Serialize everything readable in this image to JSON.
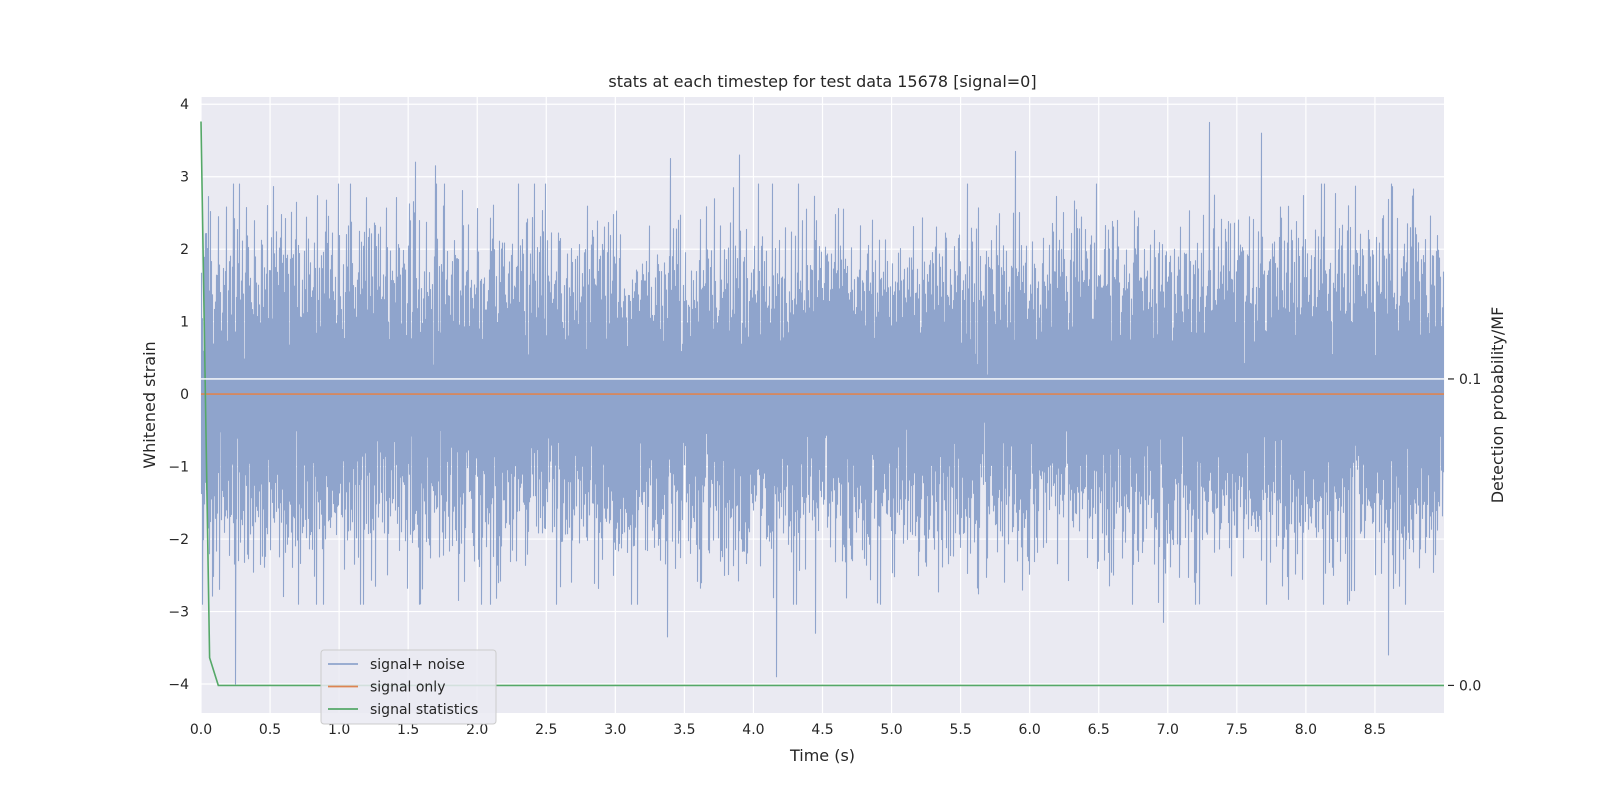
{
  "chart_data": {
    "type": "line",
    "title": "stats at each timestep for test data 15678 [signal=0]",
    "xlabel": "Time (s)",
    "ylabel": "Whitened strain",
    "y2label": "Detection probability/MF",
    "xlim": [
      0,
      9.0
    ],
    "ylim": [
      -4.4,
      4.1
    ],
    "y2lim": [
      -0.009,
      0.192
    ],
    "x_ticks": [
      "0.0",
      "0.5",
      "1.0",
      "1.5",
      "2.0",
      "2.5",
      "3.0",
      "3.5",
      "4.0",
      "4.5",
      "5.0",
      "5.5",
      "6.0",
      "6.5",
      "7.0",
      "7.5",
      "8.0",
      "8.5"
    ],
    "y_ticks": [
      "−4",
      "−3",
      "−2",
      "−1",
      "0",
      "1",
      "2",
      "3",
      "4"
    ],
    "y2_ticks": [
      "0.0",
      "0.1"
    ],
    "grid": true,
    "legend_position": "lower-left",
    "colors": {
      "background": "#eaeaf2",
      "grid": "#ffffff",
      "noise": "#8fa4cc",
      "signal_only": "#dd8452",
      "statistics": "#55a868"
    },
    "series": [
      {
        "name": "signal+ noise",
        "axis": "left",
        "kind": "noise",
        "sample_rate": 2048,
        "duration": 9.0,
        "std": 0.95,
        "seed": 15678,
        "notable_peaks": [
          {
            "x": 1.55,
            "y": 3.2
          },
          {
            "x": 1.7,
            "y": 3.15
          },
          {
            "x": 3.4,
            "y": 3.25
          },
          {
            "x": 3.9,
            "y": 3.3
          },
          {
            "x": 5.9,
            "y": 3.35
          },
          {
            "x": 7.3,
            "y": 3.75
          },
          {
            "x": 7.68,
            "y": 3.6
          },
          {
            "x": 0.25,
            "y": -4.0
          },
          {
            "x": 4.17,
            "y": -3.9
          },
          {
            "x": 4.45,
            "y": -3.3
          },
          {
            "x": 6.97,
            "y": -3.15
          },
          {
            "x": 8.6,
            "y": -3.6
          },
          {
            "x": 3.38,
            "y": -3.35
          }
        ]
      },
      {
        "name": "signal only",
        "axis": "left",
        "x": [
          0,
          9.0
        ],
        "y": [
          0,
          0
        ]
      },
      {
        "name": "signal statistics",
        "axis": "right",
        "x": [
          0,
          0.0625,
          0.125,
          0.25,
          9.0
        ],
        "y": [
          0.184,
          0.009,
          0.0,
          0.0,
          0.0
        ]
      }
    ],
    "annotations": [
      {
        "type": "hline",
        "axis": "right",
        "y": 0.1,
        "color": "#ffffff"
      }
    ]
  }
}
